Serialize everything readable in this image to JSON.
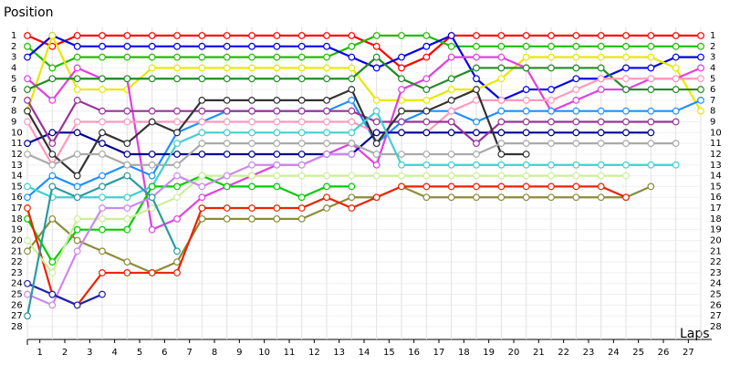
{
  "chart_data": {
    "type": "line",
    "y_label": "Position",
    "x_label": "Laps",
    "x": [
      0,
      1,
      2,
      3,
      4,
      5,
      6,
      7,
      8,
      9,
      10,
      11,
      12,
      13,
      14,
      15,
      16,
      17,
      18,
      19,
      20,
      21,
      22,
      23,
      24,
      25,
      26,
      27
    ],
    "xlim": [
      0,
      27
    ],
    "xticks": [
      {
        "value": 0.5,
        "label": "1"
      },
      {
        "value": 1.5,
        "label": "2"
      },
      {
        "value": 2.5,
        "label": "3"
      },
      {
        "value": 3.5,
        "label": "4"
      },
      {
        "value": 4.5,
        "label": "5"
      },
      {
        "value": 5.5,
        "label": "6"
      },
      {
        "value": 6.5,
        "label": "7"
      },
      {
        "value": 7.5,
        "label": "8"
      },
      {
        "value": 8.5,
        "label": "9"
      },
      {
        "value": 9.5,
        "label": "10"
      },
      {
        "value": 10.5,
        "label": "11"
      },
      {
        "value": 11.5,
        "label": "12"
      },
      {
        "value": 12.5,
        "label": "13"
      },
      {
        "value": 13.5,
        "label": "14"
      },
      {
        "value": 14.5,
        "label": "15"
      },
      {
        "value": 15.5,
        "label": "16"
      },
      {
        "value": 16.5,
        "label": "17"
      },
      {
        "value": 17.5,
        "label": "18"
      },
      {
        "value": 18.5,
        "label": "19"
      },
      {
        "value": 19.5,
        "label": "20"
      },
      {
        "value": 20.5,
        "label": "21"
      },
      {
        "value": 21.5,
        "label": "22"
      },
      {
        "value": 22.5,
        "label": "23"
      },
      {
        "value": 23.5,
        "label": "24"
      },
      {
        "value": 24.5,
        "label": "25"
      },
      {
        "value": 25.5,
        "label": "26"
      },
      {
        "value": 26.5,
        "label": "27"
      }
    ],
    "ylim": [
      1,
      28
    ],
    "y_inverted": true,
    "yticks": [
      1,
      2,
      3,
      4,
      5,
      6,
      7,
      8,
      9,
      10,
      11,
      12,
      13,
      14,
      15,
      16,
      17,
      18,
      19,
      20,
      21,
      22,
      23,
      24,
      25,
      26,
      27,
      28
    ],
    "grid": true,
    "series": [
      {
        "color": "#ff0000",
        "values": [
          1,
          2,
          1,
          1,
          1,
          1,
          1,
          1,
          1,
          1,
          1,
          1,
          1,
          1,
          2,
          4,
          3,
          1,
          1,
          1,
          1,
          1,
          1,
          1,
          1,
          1,
          1,
          1
        ]
      },
      {
        "color": "#22bb00",
        "values": [
          2,
          4,
          3,
          3,
          3,
          3,
          3,
          3,
          3,
          3,
          3,
          3,
          3,
          2,
          1,
          1,
          1,
          2,
          2,
          2,
          2,
          2,
          2,
          2,
          2,
          2,
          2,
          2
        ]
      },
      {
        "color": "#0000ee",
        "values": [
          3,
          1,
          2,
          2,
          2,
          2,
          2,
          2,
          2,
          2,
          2,
          2,
          2,
          3,
          4,
          3,
          2,
          1,
          5,
          7,
          6,
          6,
          5,
          5,
          4,
          4,
          3,
          3
        ]
      },
      {
        "color": "#e8e800",
        "values": [
          8,
          1,
          6,
          6,
          6,
          4,
          4,
          4,
          4,
          4,
          4,
          4,
          4,
          4,
          7,
          7,
          7,
          6,
          6,
          5,
          3,
          3,
          3,
          3,
          3,
          3,
          4,
          8
        ]
      },
      {
        "color": "#e040e0",
        "values": [
          5,
          7,
          4,
          5,
          5,
          19,
          18,
          16,
          15,
          14,
          13,
          13,
          12,
          11,
          13,
          6,
          5,
          3,
          3,
          3,
          4,
          8,
          7,
          6,
          6,
          5,
          5,
          4
        ]
      },
      {
        "color": "#228b22",
        "values": [
          6,
          5,
          5,
          5,
          5,
          5,
          5,
          5,
          5,
          5,
          5,
          5,
          5,
          5,
          3,
          5,
          6,
          5,
          4,
          4,
          4,
          4,
          4,
          4,
          6,
          6,
          6,
          6
        ]
      },
      {
        "color": "#1e90ff",
        "values": [
          16,
          14,
          15,
          14,
          13,
          14,
          10,
          9,
          8,
          8,
          8,
          8,
          8,
          7,
          11,
          9,
          8,
          8,
          9,
          8,
          8,
          8,
          8,
          8,
          8,
          8,
          8,
          7
        ]
      },
      {
        "color": "#ff99bb",
        "values": [
          9,
          13,
          9,
          9,
          9,
          9,
          9,
          9,
          9,
          9,
          9,
          9,
          9,
          9,
          10,
          10,
          10,
          8,
          7,
          7,
          7,
          7,
          6,
          5,
          5,
          5,
          5,
          5
        ]
      },
      {
        "color": "#000099",
        "values": [
          11,
          10,
          10,
          11,
          12,
          12,
          12,
          12,
          12,
          12,
          12,
          12,
          12,
          12,
          10,
          10,
          10,
          10,
          10,
          10,
          10,
          10,
          10,
          10,
          10,
          10,
          null,
          null
        ]
      },
      {
        "color": "#993399",
        "values": [
          7,
          11,
          7,
          8,
          8,
          8,
          8,
          8,
          8,
          8,
          8,
          8,
          8,
          8,
          9,
          9,
          9,
          9,
          11,
          9,
          9,
          9,
          9,
          9,
          9,
          9,
          9,
          null
        ]
      },
      {
        "color": "#333333",
        "values": [
          8,
          12,
          14,
          10,
          11,
          9,
          10,
          7,
          7,
          7,
          7,
          7,
          7,
          6,
          11,
          8,
          8,
          7,
          6,
          12,
          12,
          null,
          null,
          null,
          null,
          null,
          null,
          null
        ]
      },
      {
        "color": "#aaaaaa",
        "values": [
          12,
          13,
          12,
          12,
          13,
          13,
          13,
          11,
          11,
          11,
          11,
          11,
          11,
          11,
          12,
          12,
          12,
          12,
          12,
          11,
          11,
          11,
          11,
          11,
          11,
          11,
          11,
          null
        ]
      },
      {
        "color": "#40d0d0",
        "values": [
          15,
          16,
          16,
          16,
          16,
          15,
          11,
          10,
          10,
          10,
          10,
          10,
          10,
          10,
          8,
          13,
          13,
          13,
          13,
          13,
          13,
          13,
          13,
          13,
          13,
          13,
          13,
          null
        ]
      },
      {
        "color": "#00cc00",
        "values": [
          18,
          22,
          19,
          19,
          19,
          15,
          15,
          14,
          15,
          15,
          15,
          16,
          15,
          15,
          null,
          null,
          null,
          null,
          null,
          null,
          null,
          null,
          null,
          null,
          null,
          null,
          null,
          null
        ]
      },
      {
        "color": "#8b8b3a",
        "values": [
          21,
          18,
          20,
          21,
          22,
          23,
          22,
          18,
          18,
          18,
          18,
          18,
          17,
          16,
          16,
          15,
          16,
          16,
          16,
          16,
          16,
          16,
          16,
          16,
          16,
          15,
          null,
          null
        ]
      },
      {
        "color": "#ee2200",
        "values": [
          17,
          25,
          26,
          23,
          23,
          23,
          23,
          17,
          17,
          17,
          17,
          17,
          16,
          17,
          16,
          15,
          15,
          15,
          15,
          15,
          15,
          15,
          15,
          15,
          16,
          null,
          null,
          null
        ]
      },
      {
        "color": "#ccee99",
        "values": [
          20,
          23,
          18,
          18,
          18,
          17,
          16,
          14,
          14,
          14,
          14,
          14,
          14,
          14,
          14,
          14,
          14,
          14,
          14,
          14,
          14,
          14,
          14,
          14,
          14,
          null,
          null,
          null
        ]
      },
      {
        "color": "#cc88ee",
        "values": [
          25,
          26,
          21,
          17,
          17,
          16,
          14,
          15,
          14,
          13,
          13,
          13,
          12,
          12,
          null,
          null,
          null,
          null,
          null,
          null,
          null,
          null,
          null,
          null,
          null,
          null,
          null,
          null
        ]
      },
      {
        "color": "#2222aa",
        "values": [
          24,
          25,
          26,
          25,
          null,
          null,
          null,
          null,
          null,
          null,
          null,
          null,
          null,
          null,
          null,
          null,
          null,
          null,
          null,
          null,
          null,
          null,
          null,
          null,
          null,
          null,
          null,
          null
        ]
      },
      {
        "color": "#2a9aa0",
        "values": [
          27,
          15,
          16,
          15,
          14,
          16,
          21,
          null,
          null,
          null,
          null,
          null,
          null,
          null,
          null,
          null,
          null,
          null,
          null,
          null,
          null,
          null,
          null,
          null,
          null,
          null,
          null,
          null
        ]
      }
    ]
  }
}
